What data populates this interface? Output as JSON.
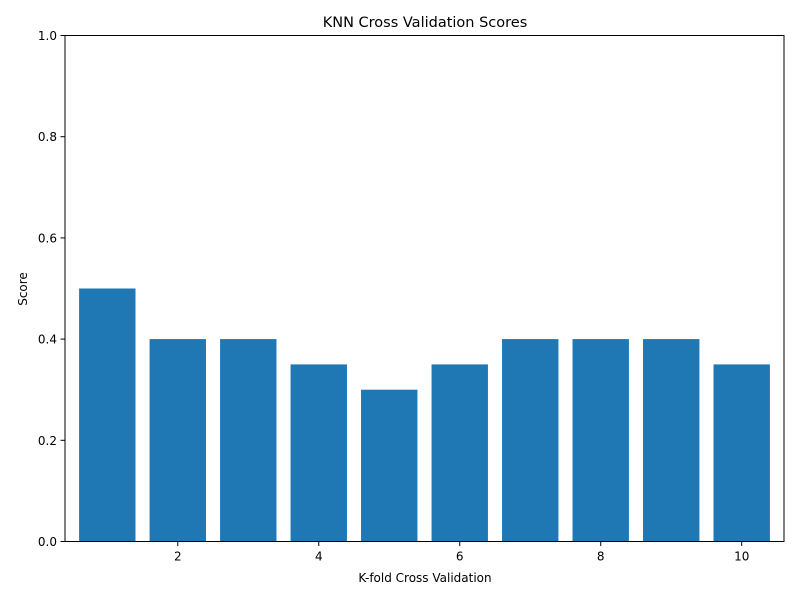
{
  "chart_data": {
    "type": "bar",
    "title": "KNN Cross Validation Scores",
    "xlabel": "K-fold Cross Validation",
    "ylabel": "Score",
    "x": [
      1,
      2,
      3,
      4,
      5,
      6,
      7,
      8,
      9,
      10
    ],
    "values": [
      0.5,
      0.4,
      0.4,
      0.35,
      0.3,
      0.35,
      0.4,
      0.4,
      0.4,
      0.35
    ],
    "xlim": [
      0.4,
      10.6
    ],
    "ylim": [
      0,
      1
    ],
    "xticks": [
      "2",
      "4",
      "6",
      "8",
      "10"
    ],
    "yticks": [
      "0.0",
      "0.2",
      "0.4",
      "0.6",
      "0.8",
      "1.0"
    ],
    "grid": false,
    "bar_color": "#1f77b4"
  }
}
